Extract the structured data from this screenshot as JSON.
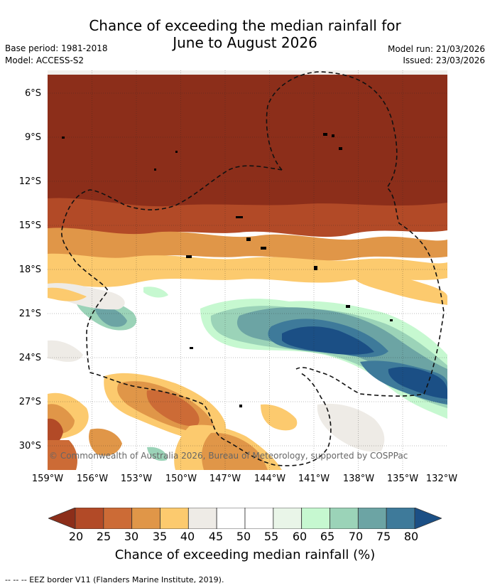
{
  "title_line1": "Chance of exceeding the median rainfall for",
  "title_line2": "June to August 2026",
  "base_period": "Base period: 1981-2018",
  "model": "Model: ACCESS-S2",
  "model_run": "Model run: 21/03/2026",
  "issued": "Issued: 23/03/2026",
  "copyright": "© Commonwealth of Australia 2026, Bureau of Meteorology, supported by COSPPac",
  "lat_ticks": [
    "6°S",
    "9°S",
    "12°S",
    "15°S",
    "18°S",
    "21°S",
    "24°S",
    "27°S",
    "30°S"
  ],
  "lon_ticks": [
    "159°W",
    "156°W",
    "153°W",
    "150°W",
    "147°W",
    "144°W",
    "141°W",
    "138°W",
    "135°W",
    "132°W"
  ],
  "colorbar": {
    "ticks": [
      "20",
      "25",
      "30",
      "35",
      "40",
      "45",
      "50",
      "55",
      "60",
      "65",
      "70",
      "75",
      "80"
    ],
    "colors": [
      "#8c2e1a",
      "#b24a27",
      "#cc6b36",
      "#e09648",
      "#fcca6e",
      "#eeebe6",
      "#ffffff",
      "#ffffff",
      "#e9f5e8",
      "#c6f8d0",
      "#9bd3b8",
      "#6ca4a4",
      "#3e7a9a",
      "#1b4f85"
    ],
    "label": "Chance of exceeding median rainfall (%)"
  },
  "eez_note": "--  --  -- EEZ border V11 (Flanders Marine Institute, 2019)."
}
